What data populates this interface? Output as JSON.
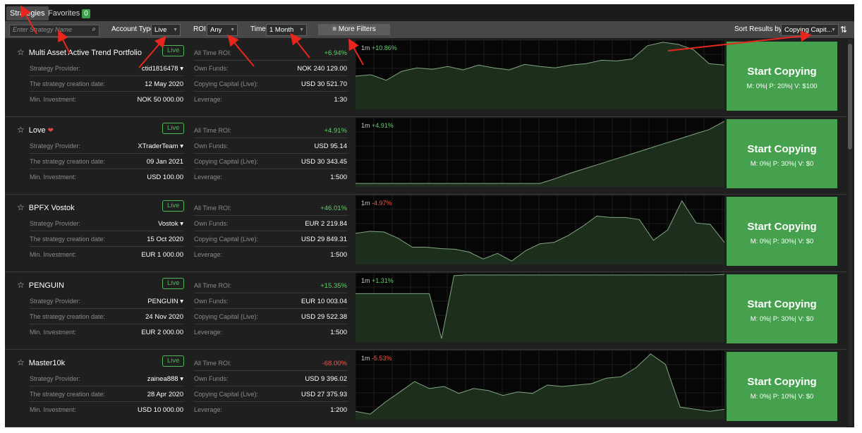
{
  "tabs": [
    {
      "label": "Strategies",
      "active": true
    },
    {
      "label": "Favorites",
      "count": "0",
      "active": false
    }
  ],
  "filters": {
    "search_placeholder": "Enter Strategy Name",
    "account_type_label": "Account Type",
    "account_type_value": "Live",
    "roi_label": "ROI",
    "roi_value": "Any",
    "time_label": "Time",
    "time_value": "1 Month",
    "more_filters": "More Filters",
    "sort_label": "Sort Results by",
    "sort_value": "Copying Capit..."
  },
  "labels": {
    "provider": "Strategy Provider:",
    "created": "The strategy creation date:",
    "min_investment": "Min. Investment:",
    "all_time_roi": "All Time ROI:",
    "own_funds": "Own Funds:",
    "copying_capital": "Copying Capital (Live):",
    "leverage": "Leverage:",
    "live_badge": "Live",
    "start_copying": "Start Copying"
  },
  "colors": {
    "positive": "#5fd16a",
    "negative": "#ee5a4a",
    "cta": "#45a14e"
  },
  "strategies": [
    {
      "name": "Multi Asset Active Trend Portfolio",
      "provider": "ctid1816478 ▾",
      "created": "12 May 2020",
      "min_investment": "NOK 50 000.00",
      "roi": "+6.94%",
      "roi_positive": true,
      "own_funds": "NOK 240 129.00",
      "copying_capital": "USD 30 521.70",
      "leverage": "1:30",
      "period": "1m",
      "change": "+10.86%",
      "change_positive": true,
      "fees": "M: 0%| P: 20%| V: $100",
      "series": [
        52,
        50,
        58,
        45,
        40,
        42,
        38,
        43,
        36,
        40,
        43,
        35,
        38,
        40,
        36,
        34,
        29,
        30,
        27,
        8,
        3,
        6,
        14,
        34,
        36
      ]
    },
    {
      "name": "Love",
      "provider": "XTraderTeam ▾",
      "created": "09 Jan 2021",
      "min_investment": "USD 100.00",
      "roi": "+4.91%",
      "roi_positive": true,
      "own_funds": "USD 95.14",
      "copying_capital": "USD 30 343.45",
      "leverage": "1:500",
      "period": "1m",
      "change": "+4.91%",
      "change_positive": true,
      "fees": "M: 0%| P: 30%| V: $0",
      "series": [
        95,
        95,
        95,
        95,
        95,
        95,
        95,
        95,
        95,
        95,
        95,
        95,
        95,
        88,
        80,
        73,
        66,
        59,
        52,
        45,
        38,
        31,
        24,
        17,
        5
      ]
    },
    {
      "name": "BPFX Vostok",
      "provider": "Vostok ▾",
      "created": "15 Oct 2020",
      "min_investment": "EUR 1 000.00",
      "roi": "+46.01%",
      "roi_positive": true,
      "own_funds": "EUR 2 219.84",
      "copying_capital": "USD 29 849.31",
      "leverage": "1:500",
      "period": "1m",
      "change": "-4.97%",
      "change_positive": false,
      "fees": "M: 0%| P: 30%| V: $0",
      "series": [
        55,
        52,
        53,
        62,
        75,
        75,
        77,
        78,
        82,
        92,
        84,
        95,
        80,
        70,
        68,
        58,
        45,
        30,
        32,
        32,
        35,
        65,
        50,
        8,
        40,
        42,
        68
      ]
    },
    {
      "name": "PENGUIN",
      "provider": "PENGUIN ▾",
      "created": "24 Nov 2020",
      "min_investment": "EUR 2 000.00",
      "roi": "+15.35%",
      "roi_positive": true,
      "own_funds": "EUR 10 003.04",
      "copying_capital": "USD 29 522.38",
      "leverage": "1:500",
      "period": "1m",
      "change": "+1.31%",
      "change_positive": true,
      "fees": "M: 0%| P: 30%| V: $0",
      "series": [
        30,
        30,
        30,
        30,
        30,
        30,
        30,
        95,
        4,
        3,
        3,
        3,
        3,
        3,
        3,
        3,
        3,
        3,
        3,
        3,
        3,
        3,
        3,
        3,
        3,
        3,
        3,
        3,
        3,
        3,
        2
      ]
    },
    {
      "name": "Master10k",
      "provider": "zainea888 ▾",
      "created": "28 Apr 2020",
      "min_investment": "USD 10 000.00",
      "roi": "-68.00%",
      "roi_positive": false,
      "own_funds": "USD 9 396.02",
      "copying_capital": "USD 27 375.93",
      "leverage": "1:200",
      "period": "1m",
      "change": "-5.53%",
      "change_positive": false,
      "fees": "M: 0%| P: 10%| V: $0",
      "series": [
        88,
        92,
        75,
        60,
        45,
        55,
        52,
        62,
        55,
        58,
        65,
        60,
        62,
        50,
        52,
        50,
        48,
        40,
        38,
        25,
        5,
        20,
        82,
        85,
        88,
        85
      ]
    }
  ]
}
